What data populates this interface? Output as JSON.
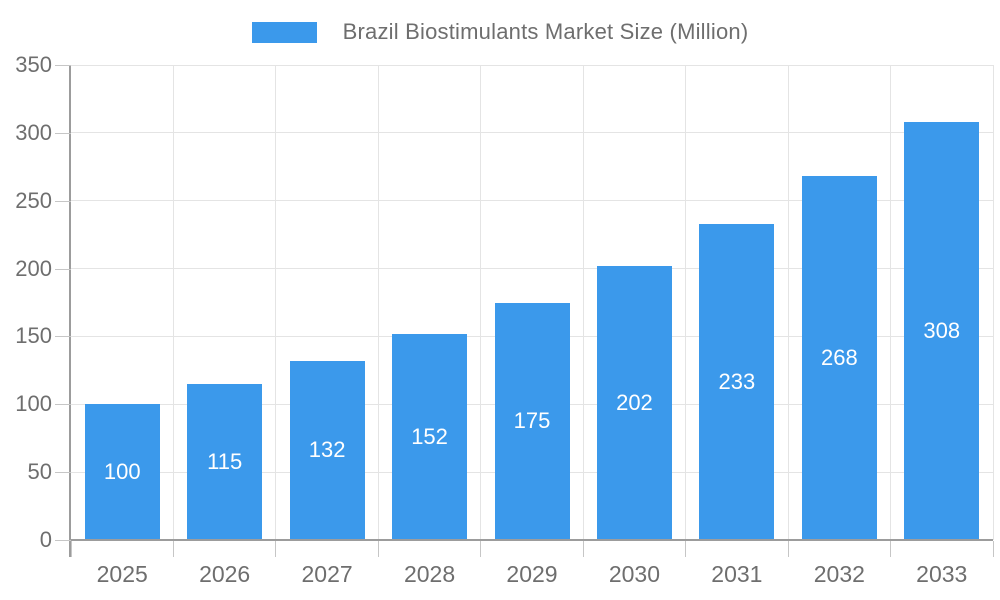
{
  "legend": {
    "label": "Brazil Biostimulants Market Size (Million)"
  },
  "chart_data": {
    "type": "bar",
    "title": "Brazil Biostimulants Market Size (Million)",
    "series_name": "Brazil Biostimulants Market Size (Million)",
    "categories": [
      "2025",
      "2026",
      "2027",
      "2028",
      "2029",
      "2030",
      "2031",
      "2032",
      "2033"
    ],
    "values": [
      100,
      115,
      132,
      152,
      175,
      202,
      233,
      268,
      308
    ],
    "xlabel": "",
    "ylabel": "",
    "ylim": [
      0,
      350
    ],
    "yticks": [
      0,
      50,
      100,
      150,
      200,
      250,
      300,
      350
    ],
    "grid": true,
    "legend_position": "top",
    "value_labels": "inside-center"
  },
  "colors": {
    "bar": "#3B99EB",
    "grid": "#E4E4E4",
    "axis": "#9C9C9C",
    "tick": "#C6C6C6",
    "text": "#6E6E6E",
    "bar_label": "#FFFFFF",
    "background": "#FFFFFF"
  }
}
